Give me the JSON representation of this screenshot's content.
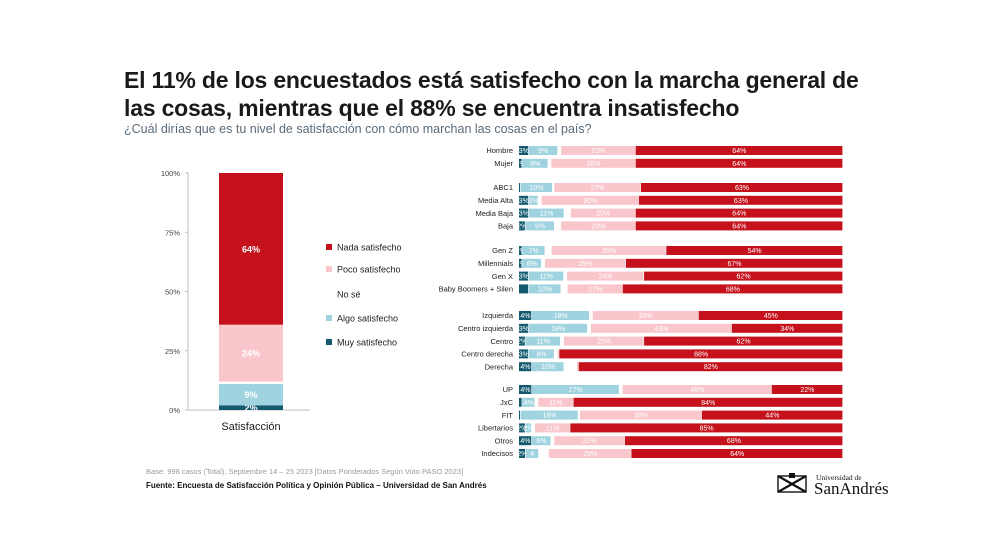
{
  "header": {
    "title": "El 11% de los encuestados está satisfecho con la marcha general de las cosas, mientras que el 88% se encuentra insatisfecho",
    "subtitle": "¿Cuál dirías que es tu nivel de satisfacción con cómo marchan las cosas en el país?"
  },
  "colors": {
    "nada": "#c4111b",
    "poco": "#f8c6cb",
    "nose": "#ffffff",
    "algo": "#9fd3df",
    "muy": "#145a6e"
  },
  "chart_data": [
    {
      "type": "bar",
      "stacked": true,
      "categories": [
        "Satisfacción"
      ],
      "ylim": [
        0,
        100
      ],
      "yticks": [
        "0%",
        "25%",
        "50%",
        "75%",
        "100%"
      ],
      "series": [
        {
          "name": "Muy satisfecho",
          "key": "muy",
          "values": [
            2
          ],
          "label": "2%"
        },
        {
          "name": "Algo satisfecho",
          "key": "algo",
          "values": [
            9
          ],
          "label": "9%"
        },
        {
          "name": "No sé",
          "key": "nose",
          "values": [
            1
          ],
          "label": ""
        },
        {
          "name": "Poco satisfecho",
          "key": "poco",
          "values": [
            24
          ],
          "label": "24%"
        },
        {
          "name": "Nada satisfecho",
          "key": "nada",
          "values": [
            64
          ],
          "label": "64%"
        }
      ],
      "legend": [
        "Nada satisfecho",
        "Poco satisfecho",
        "No sé",
        "Algo satisfecho",
        "Muy satisfecho"
      ]
    },
    {
      "type": "bar",
      "orientation": "horizontal",
      "stacked": true,
      "series_order": [
        "Muy satisfecho",
        "Algo satisfecho",
        "No sé",
        "Poco satisfecho",
        "Nada satisfecho"
      ],
      "groups": [
        {
          "rows": [
            {
              "label": "Hombre",
              "values": [
                3,
                9,
                1,
                23,
                64
              ],
              "labels": [
                "3%",
                "9%",
                "",
                "23%",
                "64%"
              ]
            },
            {
              "label": "Mujer",
              "values": [
                1,
                8,
                1,
                26,
                64
              ],
              "labels": [
                "1%",
                "8%",
                "",
                "26%",
                "64%"
              ]
            }
          ]
        },
        {
          "rows": [
            {
              "label": "ABC1",
              "values": [
                0.5,
                10,
                0.5,
                27,
                63
              ],
              "labels": [
                "",
                "10%",
                "",
                "27%",
                "63%"
              ]
            },
            {
              "label": "Media Alta",
              "values": [
                3,
                3,
                1,
                30,
                63
              ],
              "labels": [
                "3%",
                "3%",
                "",
                "30%",
                "63%"
              ]
            },
            {
              "label": "Media Baja",
              "values": [
                3,
                11,
                2,
                20,
                64
              ],
              "labels": [
                "3%",
                "11%",
                "",
                "20%",
                "64%"
              ]
            },
            {
              "label": "Baja",
              "values": [
                2,
                9,
                2,
                23,
                64
              ],
              "labels": [
                "2%",
                "9%",
                "",
                "23%",
                "64%"
              ]
            }
          ]
        },
        {
          "rows": [
            {
              "label": "Gen Z",
              "values": [
                1,
                7,
                2,
                35,
                54
              ],
              "labels": [
                "1%",
                "7%",
                "",
                "35%",
                "54%"
              ]
            },
            {
              "label": "Millennials",
              "values": [
                1,
                6,
                1,
                25,
                67
              ],
              "labels": [
                "1%",
                "6%",
                "",
                "25%",
                "67%"
              ]
            },
            {
              "label": "Gen X",
              "values": [
                3,
                11,
                1,
                24,
                62
              ],
              "labels": [
                "3%",
                "11%",
                "",
                "24%",
                "62%"
              ]
            },
            {
              "label": "Baby Boomers + Silen",
              "values": [
                3,
                10,
                2,
                17,
                68
              ],
              "labels": [
                "",
                "10%",
                "",
                "17%",
                "68%"
              ]
            }
          ]
        },
        {
          "rows": [
            {
              "label": "Izquierda",
              "values": [
                4,
                18,
                1,
                33,
                45
              ],
              "labels": [
                "4%",
                "18%",
                "",
                "33%",
                "45%"
              ]
            },
            {
              "label": "Centro izquierda",
              "values": [
                3,
                18,
                1,
                43,
                34
              ],
              "labels": [
                "3%",
                "18%",
                "",
                "43%",
                "34%"
              ]
            },
            {
              "label": "Centro",
              "values": [
                2,
                11,
                1,
                25,
                62
              ],
              "labels": [
                "2%",
                "11%",
                "",
                "25%",
                "62%"
              ]
            },
            {
              "label": "Centro derecha",
              "values": [
                3,
                8,
                1,
                0.5,
                88
              ],
              "labels": [
                "3%",
                "8%",
                "",
                "",
                "88%"
              ]
            },
            {
              "label": "Derecha",
              "values": [
                4,
                10,
                4,
                0.5,
                82
              ],
              "labels": [
                "4%",
                "10%",
                "",
                "",
                "82%"
              ]
            }
          ]
        },
        {
          "rows": [
            {
              "label": "UP",
              "values": [
                4,
                27,
                1,
                46,
                22
              ],
              "labels": [
                "4%",
                "27%",
                "",
                "46%",
                "22%"
              ]
            },
            {
              "label": "JxC",
              "values": [
                1,
                4,
                1,
                11,
                84
              ],
              "labels": [
                "",
                "4%",
                "",
                "11%",
                "84%"
              ]
            },
            {
              "label": "FIT",
              "values": [
                0.5,
                18,
                0.5,
                38,
                44
              ],
              "labels": [
                "",
                "18%",
                "",
                "38%",
                "44%"
              ]
            },
            {
              "label": "Libertarios",
              "values": [
                2,
                2,
                1,
                11,
                85
              ],
              "labels": [
                "2%",
                "2%",
                "",
                "11%",
                "85%"
              ]
            },
            {
              "label": "Otros",
              "values": [
                4,
                6,
                1,
                22,
                68
              ],
              "labels": [
                "4%",
                "6%",
                "",
                "22%",
                "68%"
              ]
            },
            {
              "label": "Indecisos",
              "values": [
                2,
                4,
                3,
                25,
                64
              ],
              "labels": [
                "2%",
                "4",
                "",
                "25%",
                "64%"
              ]
            }
          ]
        }
      ]
    }
  ],
  "footer": {
    "base_note": "Base: 998 casos (Total), Septiembre 14 – 25 2023 [Datos Ponderados Según Voto PASO 2023]",
    "source": "Fuente: Encuesta de Satisfacción Política y Opinión Pública – Universidad de San Andrés",
    "logo_small": "Universidad de",
    "logo_big": "SanAndrés"
  }
}
